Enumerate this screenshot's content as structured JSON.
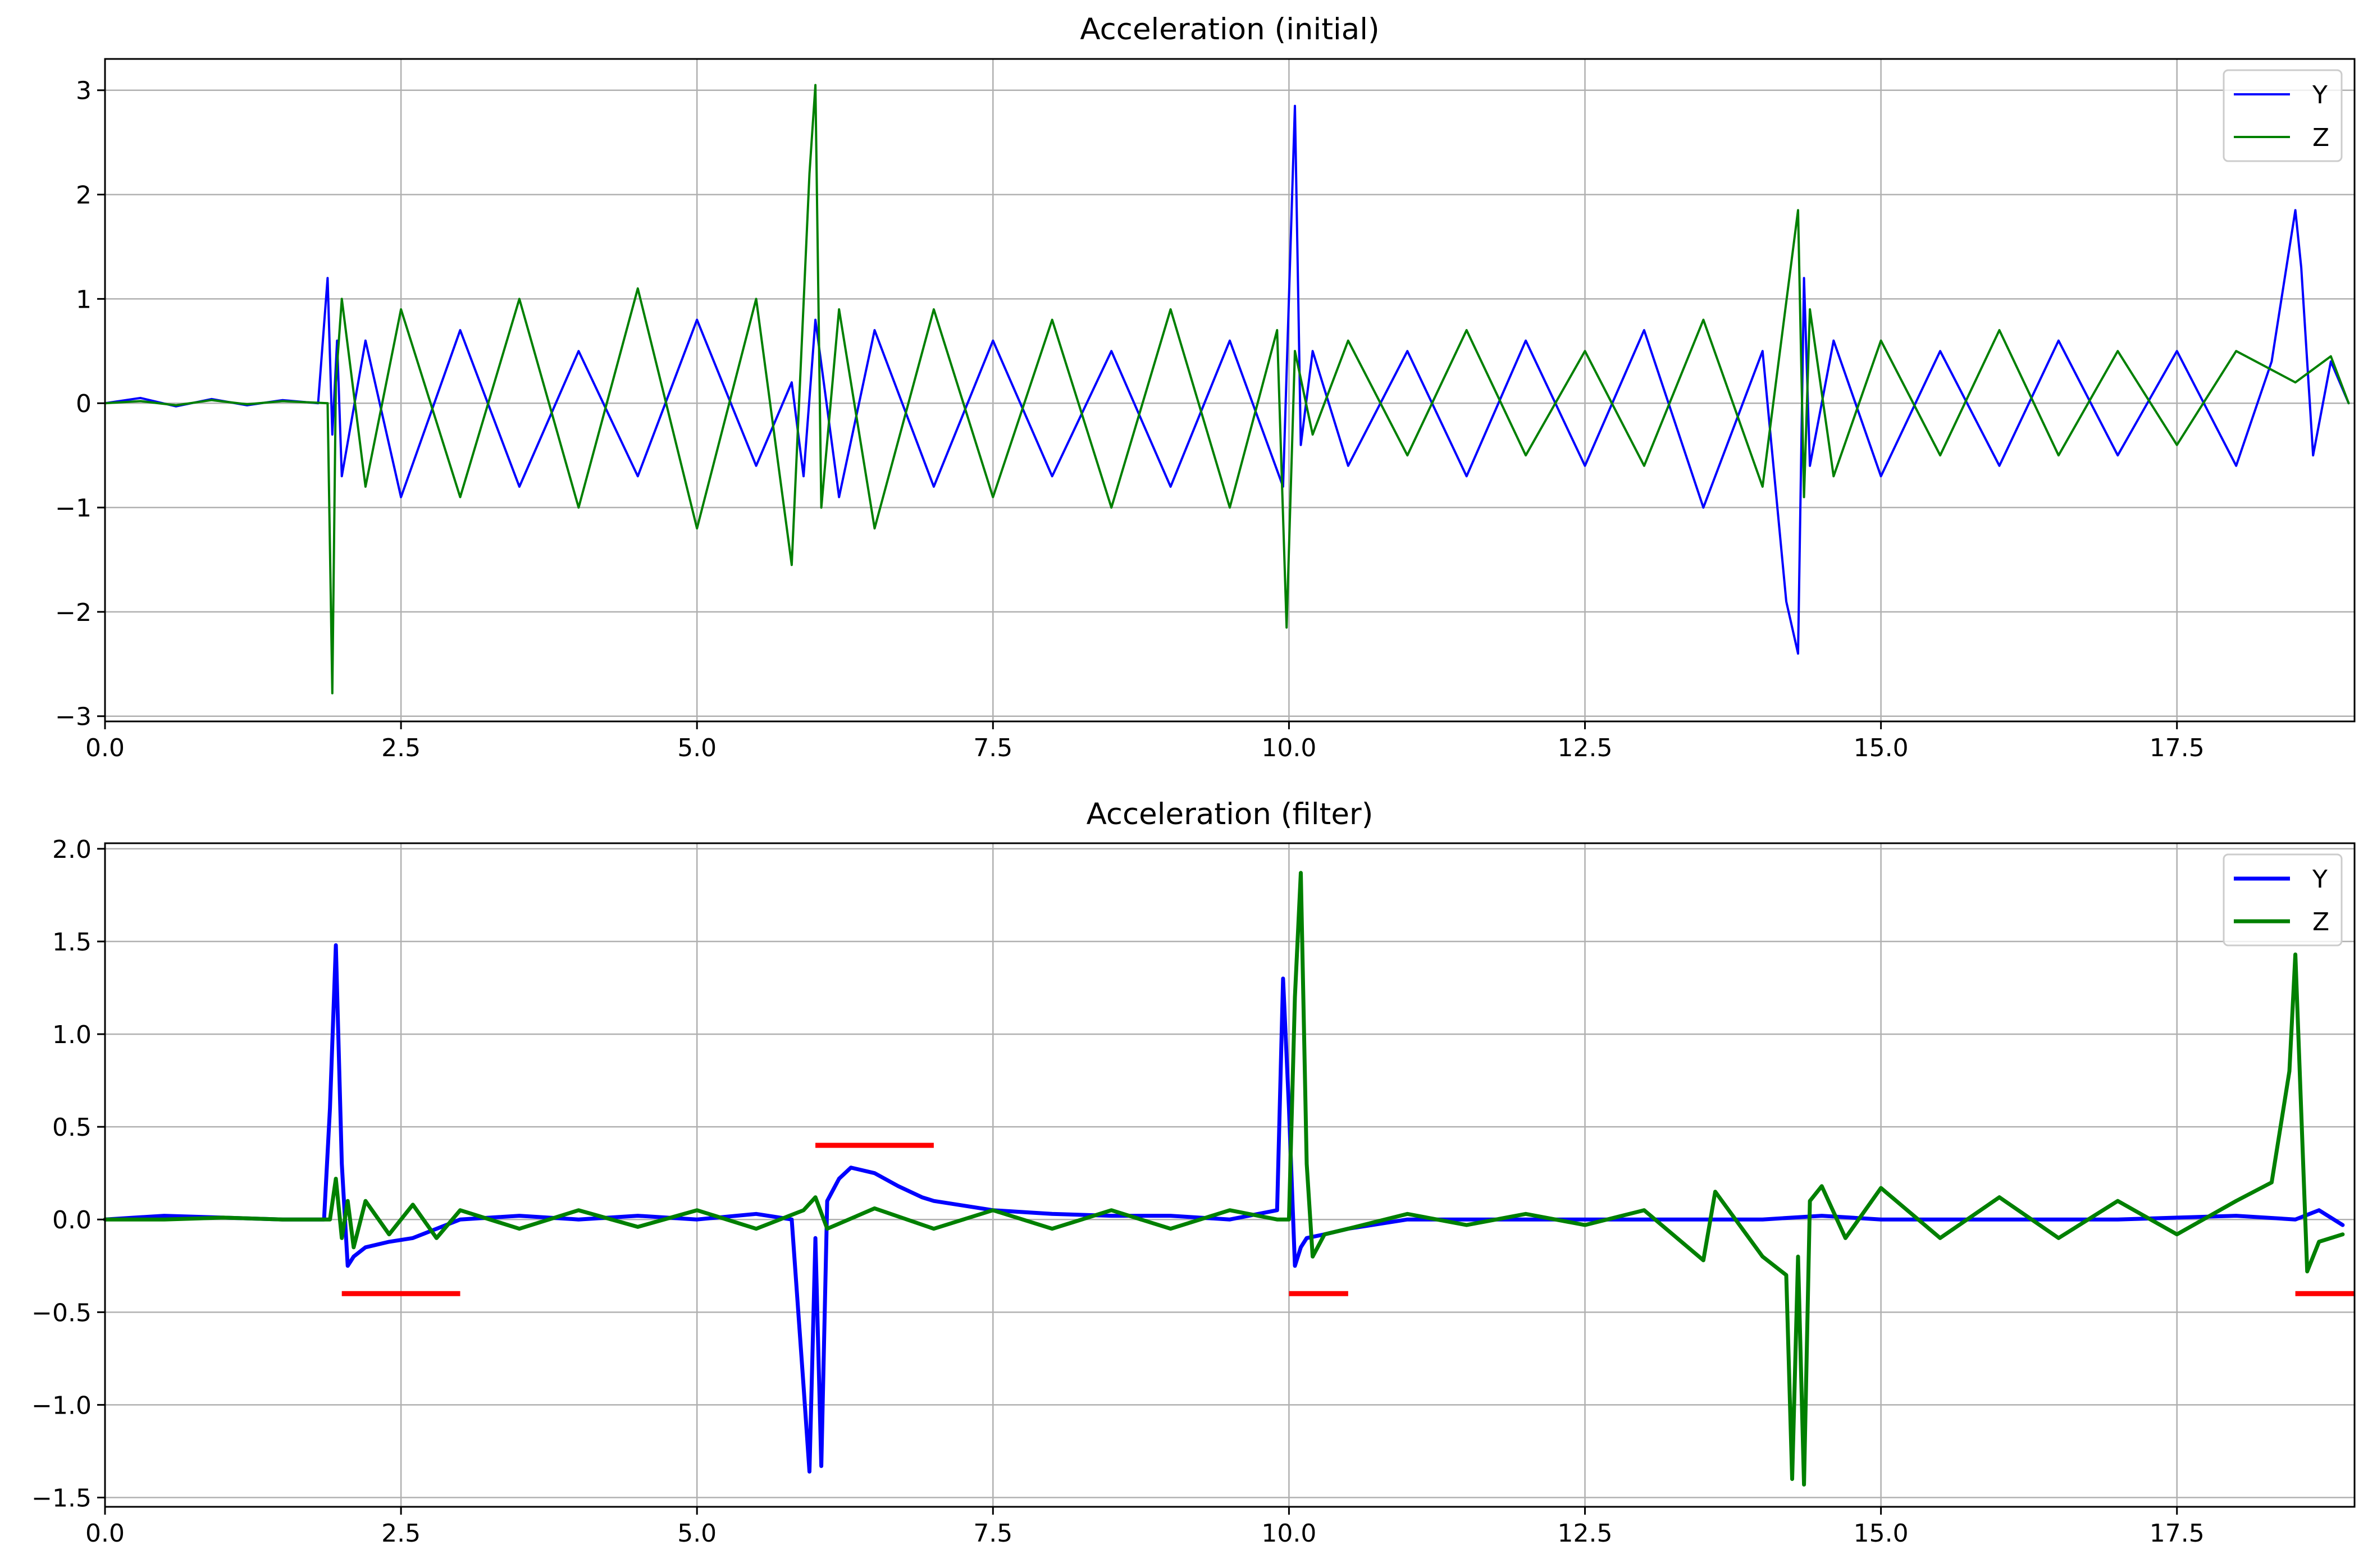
{
  "chart_data": [
    {
      "type": "line",
      "title": "Acceleration (initial)",
      "xlabel": "",
      "ylabel": "",
      "xlim": [
        0,
        19.0
      ],
      "ylim": [
        -3.05,
        3.3
      ],
      "x_ticks": [
        0.0,
        2.5,
        5.0,
        7.5,
        10.0,
        12.5,
        15.0,
        17.5
      ],
      "x_tick_labels": [
        "0.0",
        "2.5",
        "5.0",
        "7.5",
        "10.0",
        "12.5",
        "15.0",
        "17.5"
      ],
      "y_ticks": [
        -3,
        -2,
        -1,
        0,
        1,
        2,
        3
      ],
      "y_tick_labels": [
        "−3",
        "−2",
        "−1",
        "0",
        "1",
        "2",
        "3"
      ],
      "grid": true,
      "legend_position": "top-right",
      "legend": [
        "Y",
        "Z"
      ],
      "series": [
        {
          "name": "Y",
          "color": "#0000ff",
          "x": [
            0.0,
            0.3,
            0.6,
            0.9,
            1.2,
            1.5,
            1.8,
            1.88,
            1.92,
            1.96,
            2.0,
            2.2,
            2.5,
            3.0,
            3.5,
            4.0,
            4.5,
            5.0,
            5.5,
            5.8,
            5.9,
            6.0,
            6.2,
            6.5,
            7.0,
            7.5,
            8.0,
            8.5,
            9.0,
            9.5,
            9.95,
            10.05,
            10.1,
            10.2,
            10.5,
            11.0,
            11.5,
            12.0,
            12.5,
            13.0,
            13.5,
            14.0,
            14.2,
            14.3,
            14.35,
            14.4,
            14.6,
            15.0,
            15.5,
            16.0,
            16.5,
            17.0,
            17.5,
            18.0,
            18.3,
            18.5,
            18.55,
            18.65,
            18.8,
            18.95
          ],
          "y": [
            0.0,
            0.05,
            -0.03,
            0.04,
            -0.02,
            0.03,
            0.0,
            1.2,
            -0.3,
            0.6,
            -0.7,
            0.6,
            -0.9,
            0.7,
            -0.8,
            0.5,
            -0.7,
            0.8,
            -0.6,
            0.2,
            -0.7,
            0.8,
            -0.9,
            0.7,
            -0.8,
            0.6,
            -0.7,
            0.5,
            -0.8,
            0.6,
            -0.8,
            2.85,
            -0.4,
            0.5,
            -0.6,
            0.5,
            -0.7,
            0.6,
            -0.6,
            0.7,
            -1.0,
            0.5,
            -1.9,
            -2.4,
            1.2,
            -0.6,
            0.6,
            -0.7,
            0.5,
            -0.6,
            0.6,
            -0.5,
            0.5,
            -0.6,
            0.4,
            1.85,
            1.3,
            -0.5,
            0.4,
            0.0
          ]
        },
        {
          "name": "Z",
          "color": "#008000",
          "x": [
            0.0,
            0.3,
            0.6,
            0.9,
            1.2,
            1.5,
            1.88,
            1.92,
            1.95,
            2.0,
            2.2,
            2.5,
            3.0,
            3.5,
            4.0,
            4.5,
            5.0,
            5.5,
            5.8,
            5.95,
            6.0,
            6.05,
            6.2,
            6.5,
            7.0,
            7.5,
            8.0,
            8.5,
            9.0,
            9.5,
            9.9,
            9.98,
            10.05,
            10.2,
            10.5,
            11.0,
            11.5,
            12.0,
            12.5,
            13.0,
            13.5,
            14.0,
            14.3,
            14.35,
            14.4,
            14.6,
            15.0,
            15.5,
            16.0,
            16.5,
            17.0,
            17.5,
            18.0,
            18.5,
            18.8,
            18.95
          ],
          "y": [
            0.0,
            0.02,
            -0.02,
            0.03,
            -0.01,
            0.02,
            0.0,
            -2.78,
            0.2,
            1.0,
            -0.8,
            0.9,
            -0.9,
            1.0,
            -1.0,
            1.1,
            -1.2,
            1.0,
            -1.55,
            2.2,
            3.05,
            -1.0,
            0.9,
            -1.2,
            0.9,
            -0.9,
            0.8,
            -1.0,
            0.9,
            -1.0,
            0.7,
            -2.15,
            0.5,
            -0.3,
            0.6,
            -0.5,
            0.7,
            -0.5,
            0.5,
            -0.6,
            0.8,
            -0.8,
            1.85,
            -0.9,
            0.9,
            -0.7,
            0.6,
            -0.5,
            0.7,
            -0.5,
            0.5,
            -0.4,
            0.5,
            0.2,
            0.45,
            0.0
          ]
        }
      ]
    },
    {
      "type": "line",
      "title": "Acceleration (filter)",
      "xlabel": "",
      "ylabel": "",
      "xlim": [
        0,
        19.0
      ],
      "ylim": [
        -1.55,
        2.03
      ],
      "x_ticks": [
        0.0,
        2.5,
        5.0,
        7.5,
        10.0,
        12.5,
        15.0,
        17.5
      ],
      "x_tick_labels": [
        "0.0",
        "2.5",
        "5.0",
        "7.5",
        "10.0",
        "12.5",
        "15.0",
        "17.5"
      ],
      "y_ticks": [
        -1.5,
        -1.0,
        -0.5,
        0.0,
        0.5,
        1.0,
        1.5,
        2.0
      ],
      "y_tick_labels": [
        "−1.5",
        "−1.0",
        "−0.5",
        "0.0",
        "0.5",
        "1.0",
        "1.5",
        "2.0"
      ],
      "grid": true,
      "legend_position": "top-right",
      "legend": [
        "Y",
        "Z"
      ],
      "series": [
        {
          "name": "Y",
          "color": "#0000ff",
          "x": [
            0.0,
            0.5,
            1.0,
            1.5,
            1.85,
            1.9,
            1.95,
            2.0,
            2.05,
            2.1,
            2.2,
            2.4,
            2.6,
            2.8,
            3.0,
            3.5,
            4.0,
            4.5,
            5.0,
            5.5,
            5.8,
            5.9,
            5.95,
            6.0,
            6.05,
            6.1,
            6.2,
            6.3,
            6.5,
            6.7,
            6.9,
            7.0,
            7.5,
            8.0,
            8.5,
            9.0,
            9.5,
            9.9,
            9.95,
            10.0,
            10.05,
            10.1,
            10.15,
            10.3,
            10.5,
            11.0,
            11.5,
            12.0,
            12.5,
            13.0,
            13.5,
            14.0,
            14.5,
            15.0,
            15.5,
            16.0,
            16.5,
            17.0,
            17.5,
            18.0,
            18.5,
            18.7,
            18.9
          ],
          "y": [
            0.0,
            0.02,
            0.01,
            0.0,
            0.0,
            0.6,
            1.48,
            0.3,
            -0.25,
            -0.2,
            -0.15,
            -0.12,
            -0.1,
            -0.05,
            0.0,
            0.02,
            0.0,
            0.02,
            0.0,
            0.03,
            0.0,
            -0.9,
            -1.36,
            -0.1,
            -1.33,
            0.1,
            0.22,
            0.28,
            0.25,
            0.18,
            0.12,
            0.1,
            0.05,
            0.03,
            0.02,
            0.02,
            0.0,
            0.05,
            1.3,
            0.6,
            -0.25,
            -0.15,
            -0.1,
            -0.08,
            -0.05,
            0.0,
            0.0,
            0.0,
            0.0,
            0.0,
            0.0,
            0.0,
            0.02,
            0.0,
            0.0,
            0.0,
            0.0,
            0.0,
            0.01,
            0.02,
            0.0,
            0.05,
            -0.03
          ]
        },
        {
          "name": "Z",
          "color": "#008000",
          "x": [
            0.0,
            0.5,
            1.0,
            1.5,
            1.9,
            1.95,
            2.0,
            2.05,
            2.1,
            2.2,
            2.4,
            2.6,
            2.8,
            3.0,
            3.5,
            4.0,
            4.5,
            5.0,
            5.5,
            5.9,
            6.0,
            6.1,
            6.5,
            7.0,
            7.5,
            8.0,
            8.5,
            9.0,
            9.5,
            9.9,
            10.0,
            10.05,
            10.1,
            10.15,
            10.2,
            10.3,
            10.5,
            11.0,
            11.5,
            12.0,
            12.5,
            13.0,
            13.5,
            13.6,
            14.0,
            14.2,
            14.25,
            14.3,
            14.35,
            14.4,
            14.5,
            14.7,
            15.0,
            15.5,
            16.0,
            16.5,
            17.0,
            17.5,
            18.0,
            18.3,
            18.45,
            18.5,
            18.6,
            18.7,
            18.9
          ],
          "y": [
            0.0,
            0.0,
            0.01,
            0.0,
            0.0,
            0.22,
            -0.1,
            0.1,
            -0.15,
            0.1,
            -0.08,
            0.08,
            -0.1,
            0.05,
            -0.05,
            0.05,
            -0.04,
            0.05,
            -0.05,
            0.05,
            0.12,
            -0.05,
            0.06,
            -0.05,
            0.05,
            -0.05,
            0.05,
            -0.05,
            0.05,
            0.0,
            0.0,
            1.2,
            1.87,
            0.3,
            -0.2,
            -0.08,
            -0.05,
            0.03,
            -0.03,
            0.03,
            -0.03,
            0.05,
            -0.22,
            0.15,
            -0.2,
            -0.3,
            -1.4,
            -0.2,
            -1.43,
            0.1,
            0.18,
            -0.1,
            0.17,
            -0.1,
            0.12,
            -0.1,
            0.1,
            -0.08,
            0.1,
            0.2,
            0.8,
            1.43,
            -0.28,
            -0.12,
            -0.08
          ]
        }
      ],
      "annotations": [
        {
          "type": "segment",
          "color": "#ff0000",
          "x": [
            2.0,
            3.0
          ],
          "y": -0.4
        },
        {
          "type": "segment",
          "color": "#ff0000",
          "x": [
            6.0,
            7.0
          ],
          "y": 0.4
        },
        {
          "type": "segment",
          "color": "#ff0000",
          "x": [
            10.0,
            10.5
          ],
          "y": -0.4
        },
        {
          "type": "segment",
          "color": "#ff0000",
          "x": [
            18.5,
            19.0
          ],
          "y": -0.4
        }
      ]
    }
  ]
}
